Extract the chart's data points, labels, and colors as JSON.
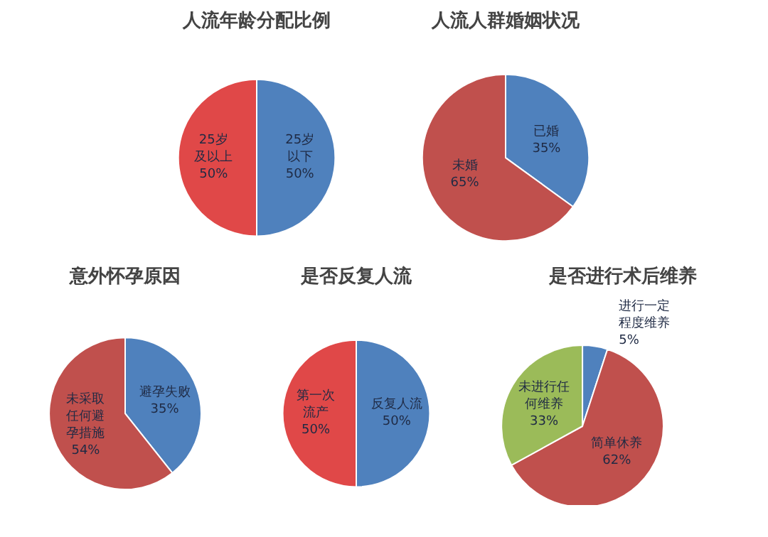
{
  "chart_data": [
    {
      "type": "pie",
      "title": "人流年龄分配比例",
      "categories": [
        "25岁以下",
        "25岁及以上"
      ],
      "values": [
        50,
        50
      ],
      "colors": [
        "#4f81bd",
        "#e04848"
      ],
      "value_labels": [
        "50%",
        "50%"
      ]
    },
    {
      "type": "pie",
      "title": "人流人群婚姻状况",
      "categories": [
        "已婚",
        "未婚"
      ],
      "values": [
        35,
        65
      ],
      "colors": [
        "#4f81bd",
        "#c0504d"
      ],
      "value_labels": [
        "35%",
        "65%"
      ]
    },
    {
      "type": "pie",
      "title": "意外怀孕原因",
      "categories": [
        "避孕失败",
        "未采取任何避孕措施"
      ],
      "values": [
        35,
        54
      ],
      "colors": [
        "#4f81bd",
        "#c0504d"
      ],
      "value_labels": [
        "35%",
        "54%"
      ]
    },
    {
      "type": "pie",
      "title": "是否反复人流",
      "categories": [
        "反复人流",
        "第一次流产"
      ],
      "values": [
        50,
        50
      ],
      "colors": [
        "#4f81bd",
        "#e04848"
      ],
      "value_labels": [
        "50%",
        "50%"
      ]
    },
    {
      "type": "pie",
      "title": "是否进行术后维养",
      "categories": [
        "进行一定程度维养",
        "简单休养",
        "未进行任何维养"
      ],
      "values": [
        5,
        62,
        33
      ],
      "colors": [
        "#4f81bd",
        "#c0504d",
        "#9bbb59"
      ],
      "value_labels": [
        "5%",
        "62%",
        "33%"
      ]
    }
  ]
}
